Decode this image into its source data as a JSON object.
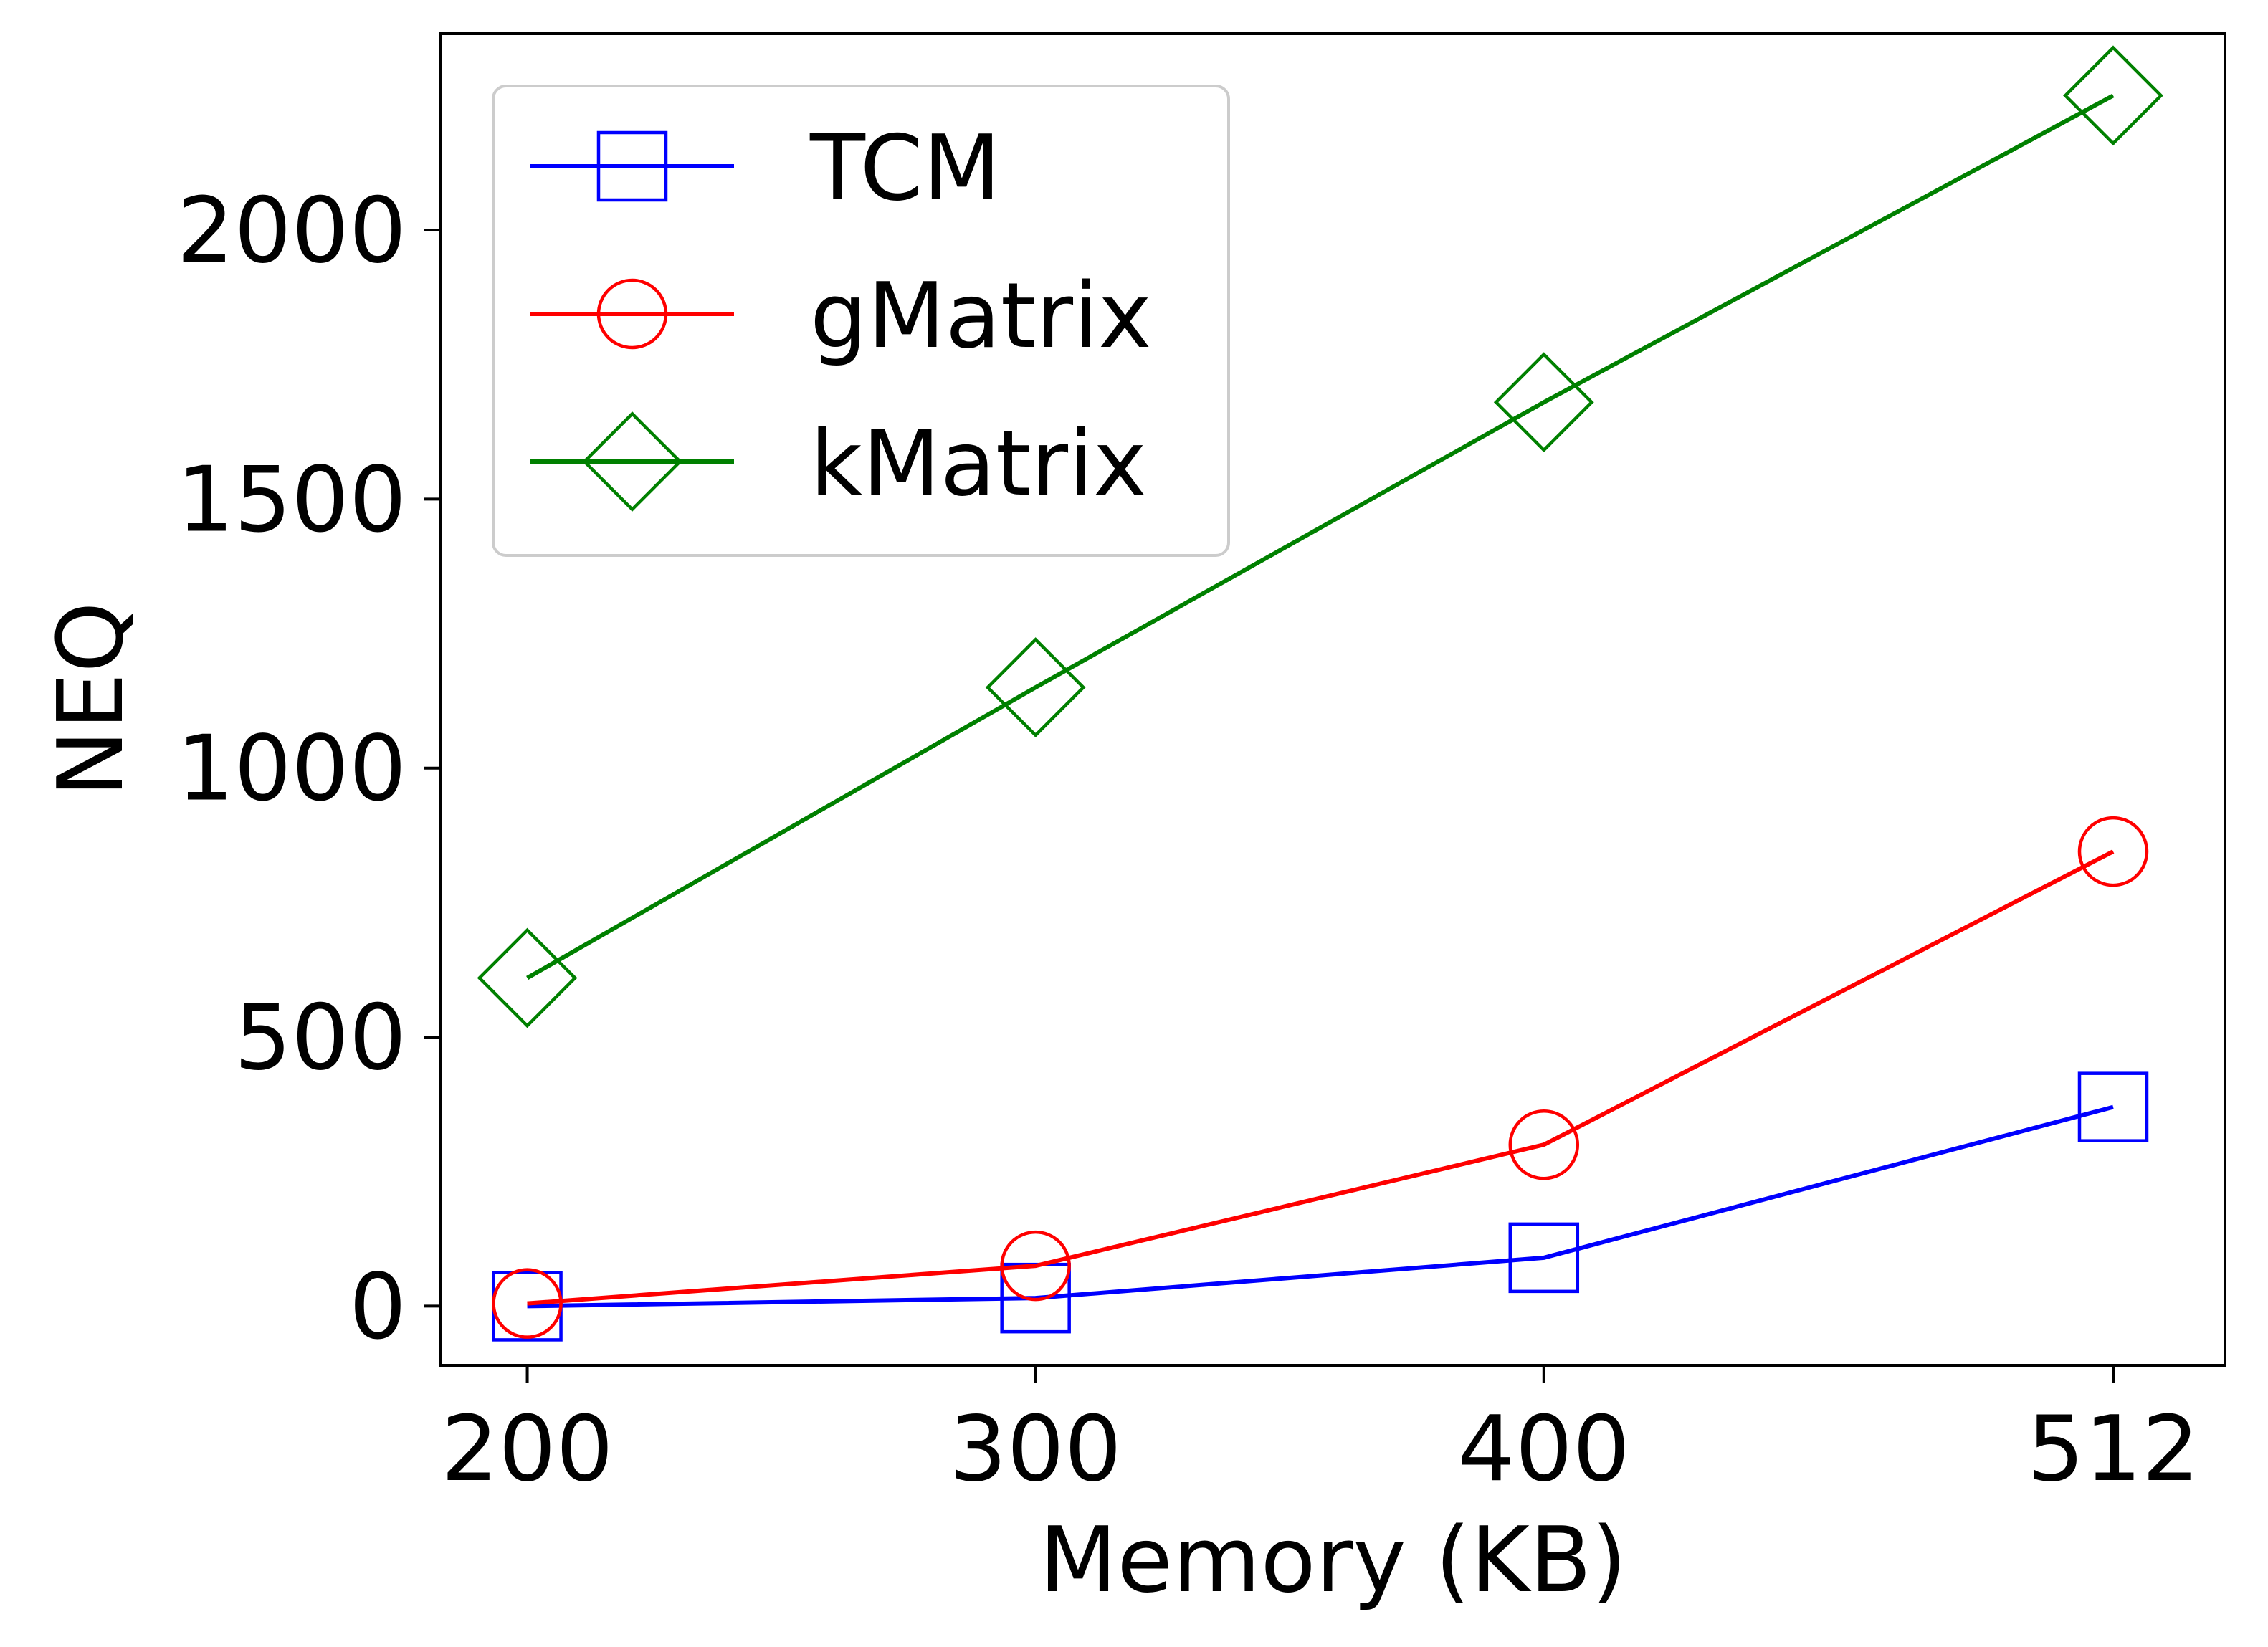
{
  "chart_data": {
    "type": "line",
    "xlabel": "Memory (KB)",
    "ylabel": "NEQ",
    "categories": [
      "200",
      "300",
      "400",
      "512"
    ],
    "x": [
      200,
      300,
      400,
      512
    ],
    "xlim": [
      183,
      534
    ],
    "ylim": [
      -110,
      2365
    ],
    "yticks": [
      0,
      500,
      1000,
      1500,
      2000
    ],
    "grid": false,
    "legend_position": "top-left",
    "series": [
      {
        "name": "TCM",
        "color": "#0000ff",
        "marker": "square",
        "values": [
          0,
          15,
          90,
          370
        ]
      },
      {
        "name": "gMatrix",
        "color": "#ff0000",
        "marker": "circle",
        "values": [
          5,
          75,
          300,
          845
        ]
      },
      {
        "name": "kMatrix",
        "color": "#008000",
        "marker": "diamond",
        "values": [
          610,
          1150,
          1680,
          2250
        ]
      }
    ]
  }
}
